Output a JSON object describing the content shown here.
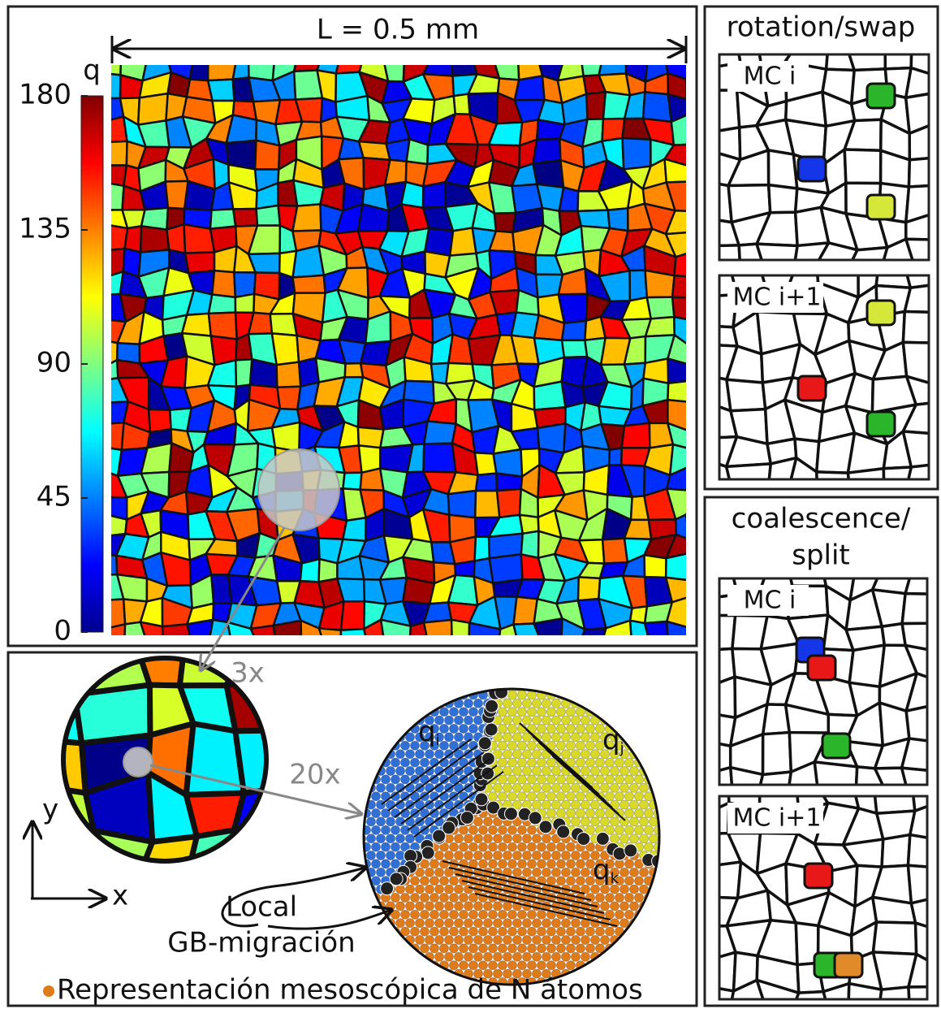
{
  "main_panel": {
    "scale_label": "L = 0.5 mm",
    "colorbar": {
      "label": "q",
      "lim": [
        0,
        180
      ],
      "ticks": [
        0,
        45,
        90,
        135,
        180
      ]
    }
  },
  "zoom_panel": {
    "zoom_small": "3x",
    "zoom_large": "20x",
    "axis_x": "x",
    "axis_y": "y",
    "grain_labels": [
      {
        "base": "q",
        "sub": "i"
      },
      {
        "base": "q",
        "sub": "j"
      },
      {
        "base": "q",
        "sub": "k"
      }
    ],
    "annotation": [
      "Local",
      "GB-migración"
    ],
    "legend": "Representación mesoscópica de N átomos"
  },
  "side_panels": [
    {
      "title": [
        "rotation/swap"
      ],
      "steps": [
        "MC i",
        "MC i+1"
      ]
    },
    {
      "title": [
        "coalescence/",
        "split"
      ],
      "steps": [
        "MC i",
        "MC i+1"
      ]
    }
  ]
}
